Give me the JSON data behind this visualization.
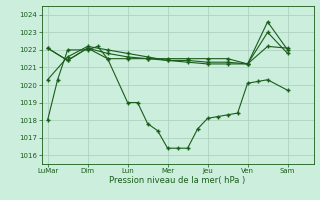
{
  "xlabel": "Pression niveau de la mer( hPa )",
  "background_color": "#cceedd",
  "grid_color_major": "#aaccbb",
  "grid_color_minor": "#bbddcc",
  "line_color": "#1a5c1a",
  "ylim": [
    1015.5,
    1024.5
  ],
  "yticks": [
    1016,
    1017,
    1018,
    1019,
    1020,
    1021,
    1022,
    1023,
    1024
  ],
  "x_labels": [
    "LuMar",
    "Dim",
    "Lun",
    "Mer",
    "Jeu",
    "Ven",
    "Sam"
  ],
  "x_tick_positions": [
    0,
    2,
    4,
    6,
    8,
    10,
    12
  ],
  "xlim": [
    -0.3,
    13.3
  ],
  "series": [
    {
      "x": [
        0,
        0.5,
        1,
        2,
        2.5,
        3,
        4,
        4.5,
        5,
        5.5,
        6,
        6.5,
        7,
        7.5,
        8,
        8.5,
        9,
        9.5,
        10,
        10.5,
        11,
        12
      ],
      "y": [
        1018.0,
        1020.3,
        1022.0,
        1022.0,
        1022.2,
        1021.5,
        1019.0,
        1019.0,
        1017.8,
        1017.4,
        1016.4,
        1016.4,
        1016.4,
        1017.5,
        1018.1,
        1018.2,
        1018.3,
        1018.4,
        1020.1,
        1020.2,
        1020.3,
        1019.7
      ]
    },
    {
      "x": [
        0,
        1,
        2,
        3,
        4,
        5,
        6,
        7,
        8,
        9,
        10,
        11,
        12
      ],
      "y": [
        1022.1,
        1021.4,
        1022.1,
        1021.5,
        1021.5,
        1021.5,
        1021.5,
        1021.5,
        1021.5,
        1021.5,
        1021.2,
        1023.6,
        1022.0
      ]
    },
    {
      "x": [
        0,
        1,
        2,
        3,
        4,
        5,
        6,
        7,
        8,
        9,
        10,
        11,
        12
      ],
      "y": [
        1022.1,
        1021.4,
        1022.1,
        1021.8,
        1021.6,
        1021.5,
        1021.4,
        1021.4,
        1021.3,
        1021.3,
        1021.2,
        1023.0,
        1021.8
      ]
    },
    {
      "x": [
        0,
        1,
        2,
        3,
        4,
        5,
        6,
        7,
        8,
        9,
        10,
        11,
        12
      ],
      "y": [
        1020.3,
        1021.6,
        1022.2,
        1022.0,
        1021.8,
        1021.6,
        1021.4,
        1021.3,
        1021.2,
        1021.2,
        1021.2,
        1022.2,
        1022.1
      ]
    }
  ]
}
